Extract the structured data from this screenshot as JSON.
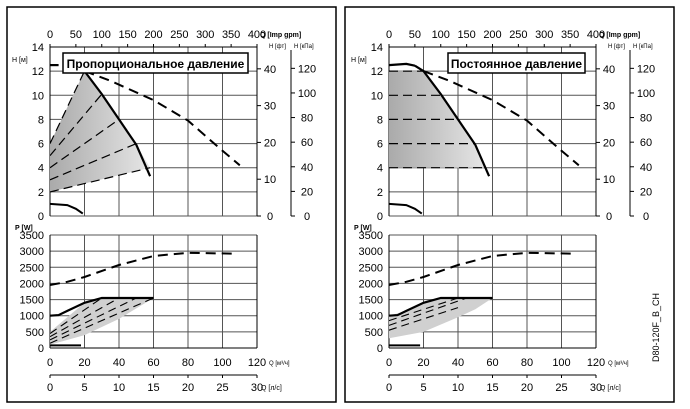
{
  "code_label": "D80-120F_B_CH",
  "chart_data": [
    {
      "type": "line",
      "title": "Пропорциональное давление",
      "mode": "proportional",
      "head": {
        "ylabel": "H [м]",
        "ylim": [
          0,
          14
        ],
        "yticks": [
          0,
          2,
          4,
          6,
          8,
          10,
          12,
          14
        ],
        "x_top_label": "Q [Imp gpm]",
        "x_top_ticks": [
          0,
          50,
          100,
          150,
          200,
          250,
          300,
          350,
          400
        ],
        "y_ft_label": "H [фт]",
        "y_ft_ticks": [
          0,
          10,
          20,
          30,
          40
        ],
        "y_kpa_label": "H [кПа]",
        "y_kpa_ticks": [
          0,
          20,
          40,
          60,
          80,
          100,
          120
        ],
        "max_curve_solid": [
          [
            0,
            12.5
          ],
          [
            5,
            12.5
          ]
        ],
        "max_curve": [
          [
            20,
            12
          ],
          [
            30,
            10.1
          ],
          [
            40,
            8
          ],
          [
            50,
            5.9
          ],
          [
            58,
            3.3
          ]
        ],
        "max_speed_dashed": [
          [
            20,
            12
          ],
          [
            35,
            11.2
          ],
          [
            60,
            9.6
          ],
          [
            80,
            7.9
          ],
          [
            100,
            5.4
          ],
          [
            110,
            4.2
          ]
        ],
        "min_curve": [
          [
            0,
            1
          ],
          [
            10,
            0.9
          ],
          [
            15,
            0.6
          ],
          [
            19,
            0.2
          ]
        ],
        "control_lines": [
          [
            [
              0,
              6
            ],
            [
              20,
              12
            ]
          ],
          [
            [
              0,
              5
            ],
            [
              30,
              10.1
            ]
          ],
          [
            [
              0,
              4
            ],
            [
              40,
              8
            ]
          ],
          [
            [
              0,
              3
            ],
            [
              50,
              6
            ]
          ],
          [
            [
              0,
              2
            ],
            [
              58,
              4
            ]
          ]
        ],
        "area": [
          [
            0,
            2
          ],
          [
            0,
            6
          ],
          [
            20,
            12
          ],
          [
            30,
            10.1
          ],
          [
            40,
            8
          ],
          [
            50,
            5.9
          ],
          [
            58,
            4
          ]
        ]
      },
      "power": {
        "ylabel": "P [W]",
        "ylim": [
          0,
          3500
        ],
        "yticks": [
          0,
          500,
          1000,
          1500,
          2000,
          2500,
          3000,
          3500
        ],
        "max_speed_dashed": [
          [
            0,
            1950
          ],
          [
            10,
            2050
          ],
          [
            20,
            2200
          ],
          [
            40,
            2570
          ],
          [
            60,
            2850
          ],
          [
            80,
            2950
          ],
          [
            108,
            2920
          ]
        ],
        "max_curve": [
          [
            0,
            1000
          ],
          [
            5,
            1020
          ],
          [
            10,
            1150
          ],
          [
            20,
            1400
          ],
          [
            30,
            1550
          ],
          [
            60,
            1550
          ]
        ],
        "min_curve": [
          [
            0,
            80
          ],
          [
            18,
            80
          ]
        ],
        "control_lines": [
          [
            [
              0,
              450
            ],
            [
              30,
              1550
            ]
          ],
          [
            [
              0,
              350
            ],
            [
              40,
              1550
            ]
          ],
          [
            [
              0,
              250
            ],
            [
              50,
              1550
            ]
          ],
          [
            [
              0,
              150
            ],
            [
              60,
              1550
            ]
          ]
        ],
        "area": [
          [
            0,
            500
          ],
          [
            20,
            1400
          ],
          [
            30,
            1550
          ],
          [
            60,
            1550
          ],
          [
            40,
            900
          ],
          [
            20,
            400
          ],
          [
            0,
            100
          ]
        ]
      },
      "xlabel": "Q [м³/ч]",
      "xlim": [
        0,
        120
      ],
      "xticks": [
        0,
        20,
        40,
        60,
        80,
        100,
        120
      ],
      "x2label": "Q [л/с]",
      "x2ticks": [
        0,
        5,
        10,
        15,
        20,
        25,
        30
      ]
    },
    {
      "type": "line",
      "title": "Постоянное давление",
      "mode": "constant",
      "head": {
        "ylabel": "H [м]",
        "ylim": [
          0,
          14
        ],
        "yticks": [
          0,
          2,
          4,
          6,
          8,
          10,
          12,
          14
        ],
        "x_top_label": "Q [Imp gpm]",
        "x_top_ticks": [
          0,
          50,
          100,
          150,
          200,
          250,
          300,
          350,
          400
        ],
        "y_ft_label": "H [фт]",
        "y_ft_ticks": [
          0,
          10,
          20,
          30,
          40
        ],
        "y_kpa_label": "H [кПа]",
        "y_kpa_ticks": [
          0,
          20,
          40,
          60,
          80,
          100,
          120
        ],
        "max_curve_solid": [
          [
            0,
            12.5
          ],
          [
            10,
            12.6
          ],
          [
            15,
            12.45
          ]
        ],
        "max_curve": [
          [
            15,
            12.45
          ],
          [
            20,
            12
          ],
          [
            30,
            10.1
          ],
          [
            40,
            8
          ],
          [
            50,
            5.9
          ],
          [
            58,
            3.3
          ]
        ],
        "max_speed_dashed": [
          [
            20,
            12
          ],
          [
            35,
            11.2
          ],
          [
            60,
            9.6
          ],
          [
            80,
            7.9
          ],
          [
            100,
            5.4
          ],
          [
            110,
            4.2
          ]
        ],
        "min_curve": [
          [
            0,
            1
          ],
          [
            10,
            0.9
          ],
          [
            15,
            0.6
          ],
          [
            19,
            0.2
          ]
        ],
        "control_lines": [
          [
            [
              0,
              12
            ],
            [
              20,
              12
            ]
          ],
          [
            [
              0,
              10
            ],
            [
              30,
              10
            ]
          ],
          [
            [
              0,
              8
            ],
            [
              40,
              8
            ]
          ],
          [
            [
              0,
              6
            ],
            [
              50,
              6
            ]
          ],
          [
            [
              0,
              4
            ],
            [
              56,
              4
            ]
          ]
        ],
        "area": [
          [
            0,
            4
          ],
          [
            0,
            12
          ],
          [
            20,
            12
          ],
          [
            30,
            10.1
          ],
          [
            40,
            8
          ],
          [
            50,
            5.9
          ],
          [
            56,
            4
          ]
        ]
      },
      "power": {
        "ylabel": "P [W]",
        "ylim": [
          0,
          3500
        ],
        "yticks": [
          0,
          500,
          1000,
          1500,
          2000,
          2500,
          3000,
          3500
        ],
        "max_speed_dashed": [
          [
            0,
            1950
          ],
          [
            10,
            2050
          ],
          [
            20,
            2200
          ],
          [
            40,
            2570
          ],
          [
            60,
            2850
          ],
          [
            80,
            2950
          ],
          [
            108,
            2920
          ]
        ],
        "max_curve": [
          [
            0,
            1000
          ],
          [
            5,
            1020
          ],
          [
            10,
            1150
          ],
          [
            20,
            1400
          ],
          [
            30,
            1550
          ],
          [
            60,
            1550
          ]
        ],
        "min_curve": [
          [
            0,
            80
          ],
          [
            18,
            80
          ]
        ],
        "control_lines": [
          [
            [
              0,
              850
            ],
            [
              40,
              1550
            ]
          ],
          [
            [
              0,
              700
            ],
            [
              45,
              1550
            ]
          ],
          [
            [
              0,
              550
            ],
            [
              40,
              1250
            ]
          ]
        ],
        "area": [
          [
            0,
            1000
          ],
          [
            10,
            1150
          ],
          [
            20,
            1400
          ],
          [
            30,
            1550
          ],
          [
            60,
            1550
          ],
          [
            50,
            1200
          ],
          [
            40,
            950
          ],
          [
            20,
            500
          ],
          [
            0,
            300
          ]
        ]
      },
      "xlabel": "Q [м³/ч]",
      "xlim": [
        0,
        120
      ],
      "xticks": [
        0,
        20,
        40,
        60,
        80,
        100,
        120
      ],
      "x2label": "Q [л/с]",
      "x2ticks": [
        0,
        5,
        10,
        15,
        20,
        25,
        30
      ]
    }
  ]
}
